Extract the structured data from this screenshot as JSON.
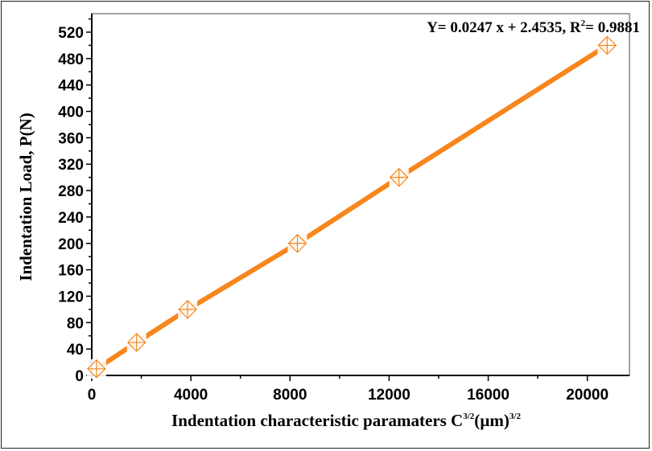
{
  "chart_data": {
    "type": "scatter",
    "title": "",
    "xlabel": "Indentation characteristic paramaters C",
    "xlabel_sup1": "3/2",
    "xlabel_unit": "(µm)",
    "xlabel_sup2": "3/2",
    "ylabel": "Indentation Load, P(N)",
    "xlim": [
      0,
      21700
    ],
    "ylim": [
      0,
      548
    ],
    "xticks": [
      0,
      4000,
      8000,
      12000,
      16000,
      20000
    ],
    "yticks": [
      0,
      40,
      80,
      120,
      160,
      200,
      240,
      280,
      320,
      360,
      400,
      440,
      480,
      520
    ],
    "grid": false,
    "series": [
      {
        "x": [
          190,
          1810,
          3870,
          8300,
          12400,
          20800
        ],
        "y": [
          10,
          50,
          100,
          200,
          300,
          500
        ],
        "marker": "diamond-cross",
        "color": "#f7861c"
      }
    ],
    "annotation": {
      "equation": "Y= 0.0247 x + 2.4535, R",
      "sup": "2",
      "r2": "= 0.9881"
    }
  }
}
